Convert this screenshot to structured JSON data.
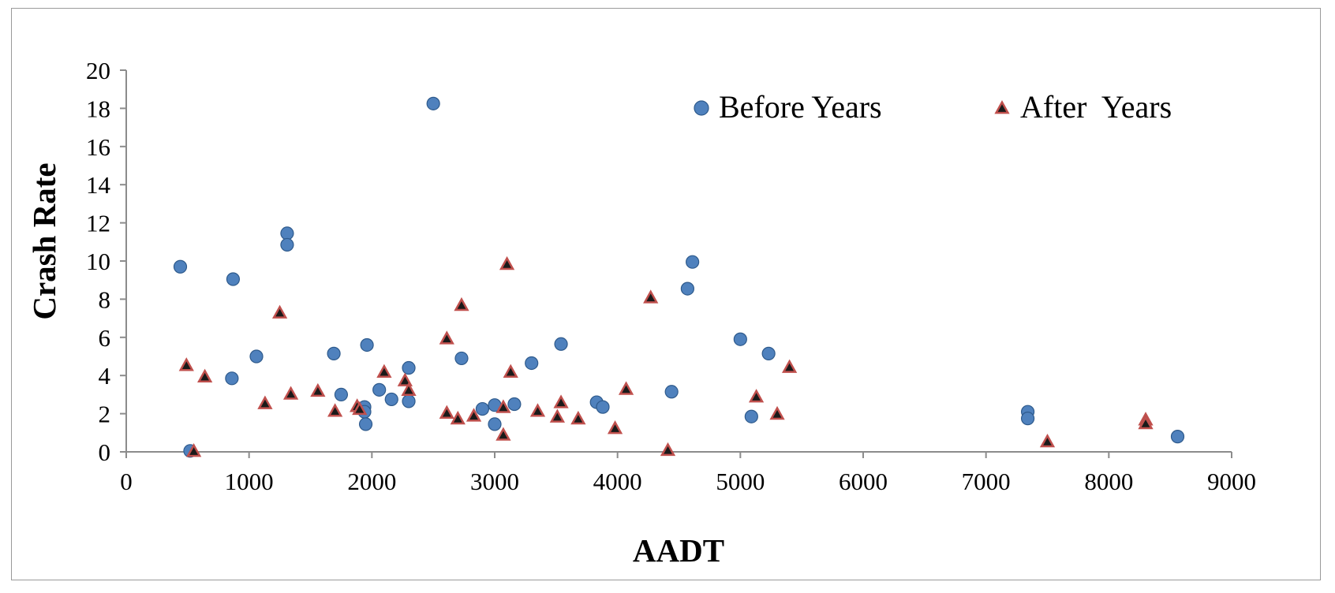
{
  "chart_data": {
    "type": "scatter",
    "title": "",
    "xlabel": "AADT",
    "ylabel": "Crash Rate",
    "xlim": [
      0,
      9000
    ],
    "ylim": [
      0,
      20
    ],
    "x_ticks": [
      0,
      1000,
      2000,
      3000,
      4000,
      5000,
      6000,
      7000,
      8000,
      9000
    ],
    "y_ticks": [
      0,
      2,
      4,
      6,
      8,
      10,
      12,
      14,
      16,
      18,
      20
    ],
    "grid": false,
    "legend": {
      "placement": "top-right",
      "orientation": "horizontal"
    },
    "series": [
      {
        "name": "Before Years",
        "marker": "circle",
        "color": "#4f81bd",
        "points": [
          [
            440,
            9.7
          ],
          [
            520,
            0.05
          ],
          [
            860,
            3.85
          ],
          [
            870,
            9.05
          ],
          [
            1060,
            5.0
          ],
          [
            1310,
            11.45
          ],
          [
            1310,
            10.85
          ],
          [
            1690,
            5.15
          ],
          [
            1750,
            3.0
          ],
          [
            1940,
            2.35
          ],
          [
            1940,
            2.1
          ],
          [
            1950,
            1.45
          ],
          [
            1960,
            5.6
          ],
          [
            2060,
            3.25
          ],
          [
            2160,
            2.75
          ],
          [
            2300,
            4.4
          ],
          [
            2300,
            2.65
          ],
          [
            2500,
            18.25
          ],
          [
            2730,
            4.9
          ],
          [
            2900,
            2.25
          ],
          [
            3000,
            2.45
          ],
          [
            3000,
            1.45
          ],
          [
            3160,
            2.5
          ],
          [
            3300,
            4.65
          ],
          [
            3540,
            5.65
          ],
          [
            3830,
            2.6
          ],
          [
            3880,
            2.35
          ],
          [
            4440,
            3.15
          ],
          [
            4570,
            8.55
          ],
          [
            4610,
            9.95
          ],
          [
            5000,
            5.9
          ],
          [
            5090,
            1.85
          ],
          [
            5230,
            5.15
          ],
          [
            7340,
            2.1
          ],
          [
            7340,
            1.75
          ],
          [
            8560,
            0.8
          ]
        ]
      },
      {
        "name": "After  Years",
        "marker": "triangle",
        "color": "#c0504d",
        "points": [
          [
            490,
            4.5
          ],
          [
            550,
            0.0
          ],
          [
            640,
            3.9
          ],
          [
            1130,
            2.5
          ],
          [
            1250,
            7.25
          ],
          [
            1340,
            3.0
          ],
          [
            1560,
            3.15
          ],
          [
            1700,
            2.1
          ],
          [
            1880,
            2.35
          ],
          [
            1900,
            2.2
          ],
          [
            2100,
            4.15
          ],
          [
            2270,
            3.7
          ],
          [
            2300,
            3.2
          ],
          [
            2610,
            5.9
          ],
          [
            2610,
            2.0
          ],
          [
            2700,
            1.7
          ],
          [
            2730,
            7.65
          ],
          [
            2830,
            1.85
          ],
          [
            3070,
            2.3
          ],
          [
            3070,
            0.85
          ],
          [
            3100,
            9.8
          ],
          [
            3130,
            4.15
          ],
          [
            3350,
            2.1
          ],
          [
            3510,
            1.8
          ],
          [
            3540,
            2.55
          ],
          [
            3680,
            1.7
          ],
          [
            3980,
            1.2
          ],
          [
            4070,
            3.25
          ],
          [
            4270,
            8.05
          ],
          [
            4410,
            0.05
          ],
          [
            5130,
            2.85
          ],
          [
            5300,
            1.95
          ],
          [
            5400,
            4.4
          ],
          [
            7500,
            0.5
          ],
          [
            8300,
            1.65
          ],
          [
            8300,
            1.45
          ]
        ]
      }
    ]
  }
}
